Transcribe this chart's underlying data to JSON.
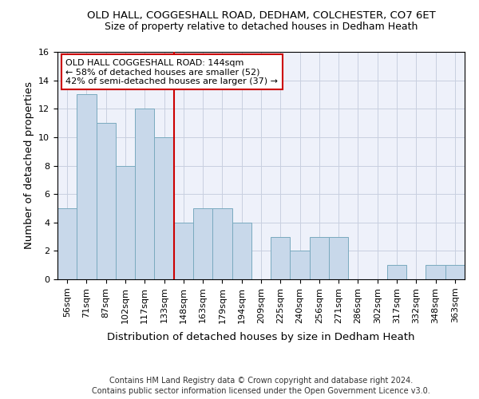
{
  "title_line1": "OLD HALL, COGGESHALL ROAD, DEDHAM, COLCHESTER, CO7 6ET",
  "title_line2": "Size of property relative to detached houses in Dedham Heath",
  "xlabel": "Distribution of detached houses by size in Dedham Heath",
  "ylabel": "Number of detached properties",
  "categories": [
    "56sqm",
    "71sqm",
    "87sqm",
    "102sqm",
    "117sqm",
    "133sqm",
    "148sqm",
    "163sqm",
    "179sqm",
    "194sqm",
    "209sqm",
    "225sqm",
    "240sqm",
    "256sqm",
    "271sqm",
    "286sqm",
    "302sqm",
    "317sqm",
    "332sqm",
    "348sqm",
    "363sqm"
  ],
  "values": [
    5,
    13,
    11,
    8,
    12,
    10,
    4,
    5,
    5,
    4,
    0,
    3,
    2,
    3,
    3,
    0,
    0,
    1,
    0,
    1,
    1
  ],
  "bar_color": "#c8d8ea",
  "bar_edge_color": "#7aaabf",
  "bar_linewidth": 0.7,
  "vline_x": 6.0,
  "vline_color": "#cc0000",
  "annotation_line1": "OLD HALL COGGESHALL ROAD: 144sqm",
  "annotation_line2": "← 58% of detached houses are smaller (52)",
  "annotation_line3": "42% of semi-detached houses are larger (37) →",
  "ylim": [
    0,
    16
  ],
  "yticks": [
    0,
    2,
    4,
    6,
    8,
    10,
    12,
    14,
    16
  ],
  "grid_color": "#c8cfe0",
  "background_color": "#eef1fa",
  "footer_line1": "Contains HM Land Registry data © Crown copyright and database right 2024.",
  "footer_line2": "Contains public sector information licensed under the Open Government Licence v3.0.",
  "title_fontsize": 9.5,
  "subtitle_fontsize": 9,
  "axis_label_fontsize": 9.5,
  "tick_fontsize": 8,
  "annotation_fontsize": 8,
  "footer_fontsize": 7
}
